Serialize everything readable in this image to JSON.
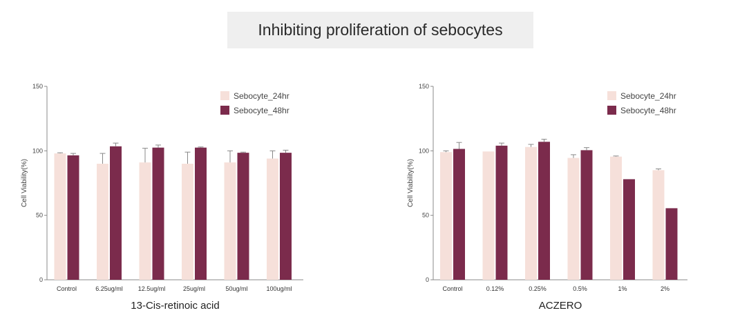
{
  "page_title": "Inhibiting proliferation of sebocytes",
  "colors": {
    "series_24hr": "#f6e0da",
    "series_48hr": "#7b2b4c",
    "axis": "#888888",
    "error_bar": "#888888"
  },
  "chart_data": [
    {
      "type": "bar",
      "xlabel": "13-Cis-retinoic acid",
      "ylabel": "Cell Viability(%)",
      "ylim": [
        0,
        150
      ],
      "yticks": [
        0,
        50,
        100,
        150
      ],
      "legend_position": "top-right",
      "categories": [
        "Control",
        "6.25ug/ml",
        "12.5ug/ml",
        "25ug/ml",
        "50ug/ml",
        "100ug/ml"
      ],
      "series": [
        {
          "name": "Sebocyte_24hr",
          "values": [
            98,
            90,
            91,
            90,
            91,
            94
          ],
          "errors": [
            0.5,
            8,
            11,
            9,
            9,
            6
          ]
        },
        {
          "name": "Sebocyte_48hr",
          "values": [
            96.5,
            103.5,
            102.5,
            102.5,
            98.5,
            98.5
          ],
          "errors": [
            1.5,
            2.5,
            2,
            0.5,
            0.5,
            2
          ]
        }
      ]
    },
    {
      "type": "bar",
      "xlabel": "ACZERO",
      "ylabel": "Cell Viability(%)",
      "ylim": [
        0,
        150
      ],
      "yticks": [
        0,
        50,
        100,
        150
      ],
      "legend_position": "top-right",
      "categories": [
        "Control",
        "0.12%",
        "0.25%",
        "0.5%",
        "1%",
        "2%"
      ],
      "series": [
        {
          "name": "Sebocyte_24hr",
          "values": [
            99,
            99.5,
            103,
            94.5,
            95.5,
            85
          ],
          "errors": [
            1,
            0,
            2,
            2.5,
            0.5,
            1
          ]
        },
        {
          "name": "Sebocyte_48hr",
          "values": [
            101.5,
            104,
            107,
            100.5,
            78,
            55.5
          ],
          "errors": [
            5,
            2,
            2,
            2,
            0,
            0
          ]
        }
      ]
    }
  ]
}
